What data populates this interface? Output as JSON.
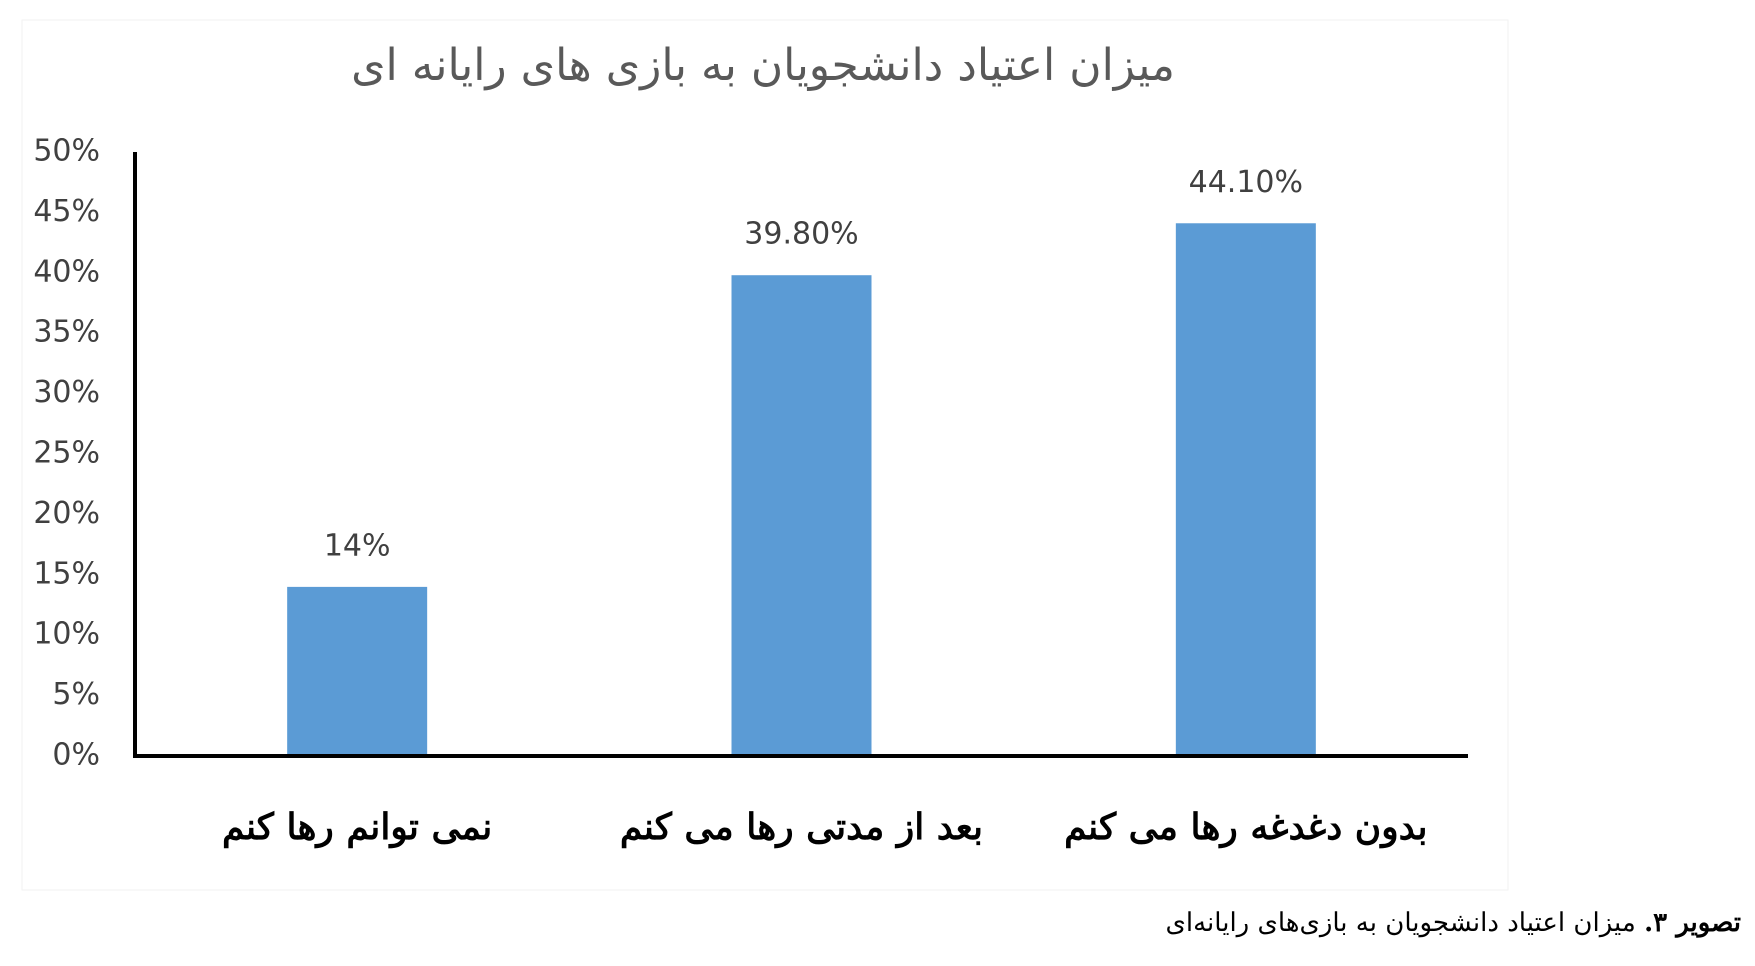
{
  "chart_data": {
    "type": "bar",
    "title": "میزان اعتیاد دانشجویان به بازی های رایانه ای",
    "categories": [
      "نمی توانم رها کنم",
      "بعد از مدتی رها می کنم",
      "بدون دغدغه رها می کنم"
    ],
    "values": [
      14,
      39.8,
      44.1
    ],
    "value_labels": [
      "14%",
      "39.80%",
      "44.10%"
    ],
    "color": "#5b9bd5",
    "ylim": [
      0,
      50
    ],
    "yticks": [
      {
        "value": 0,
        "label": "0%"
      },
      {
        "value": 5,
        "label": "5%"
      },
      {
        "value": 10,
        "label": "10%"
      },
      {
        "value": 15,
        "label": "15%"
      },
      {
        "value": 20,
        "label": "20%"
      },
      {
        "value": 25,
        "label": "25%"
      },
      {
        "value": 30,
        "label": "30%"
      },
      {
        "value": 35,
        "label": "35%"
      },
      {
        "value": 40,
        "label": "40%"
      },
      {
        "value": 45,
        "label": "45%"
      },
      {
        "value": 50,
        "label": "50%"
      }
    ],
    "grid": false
  },
  "caption": {
    "label": "تصویر ۳.",
    "text": "میزان اعتیاد دانشجویان به بازی‌های رایانه‌ای"
  }
}
